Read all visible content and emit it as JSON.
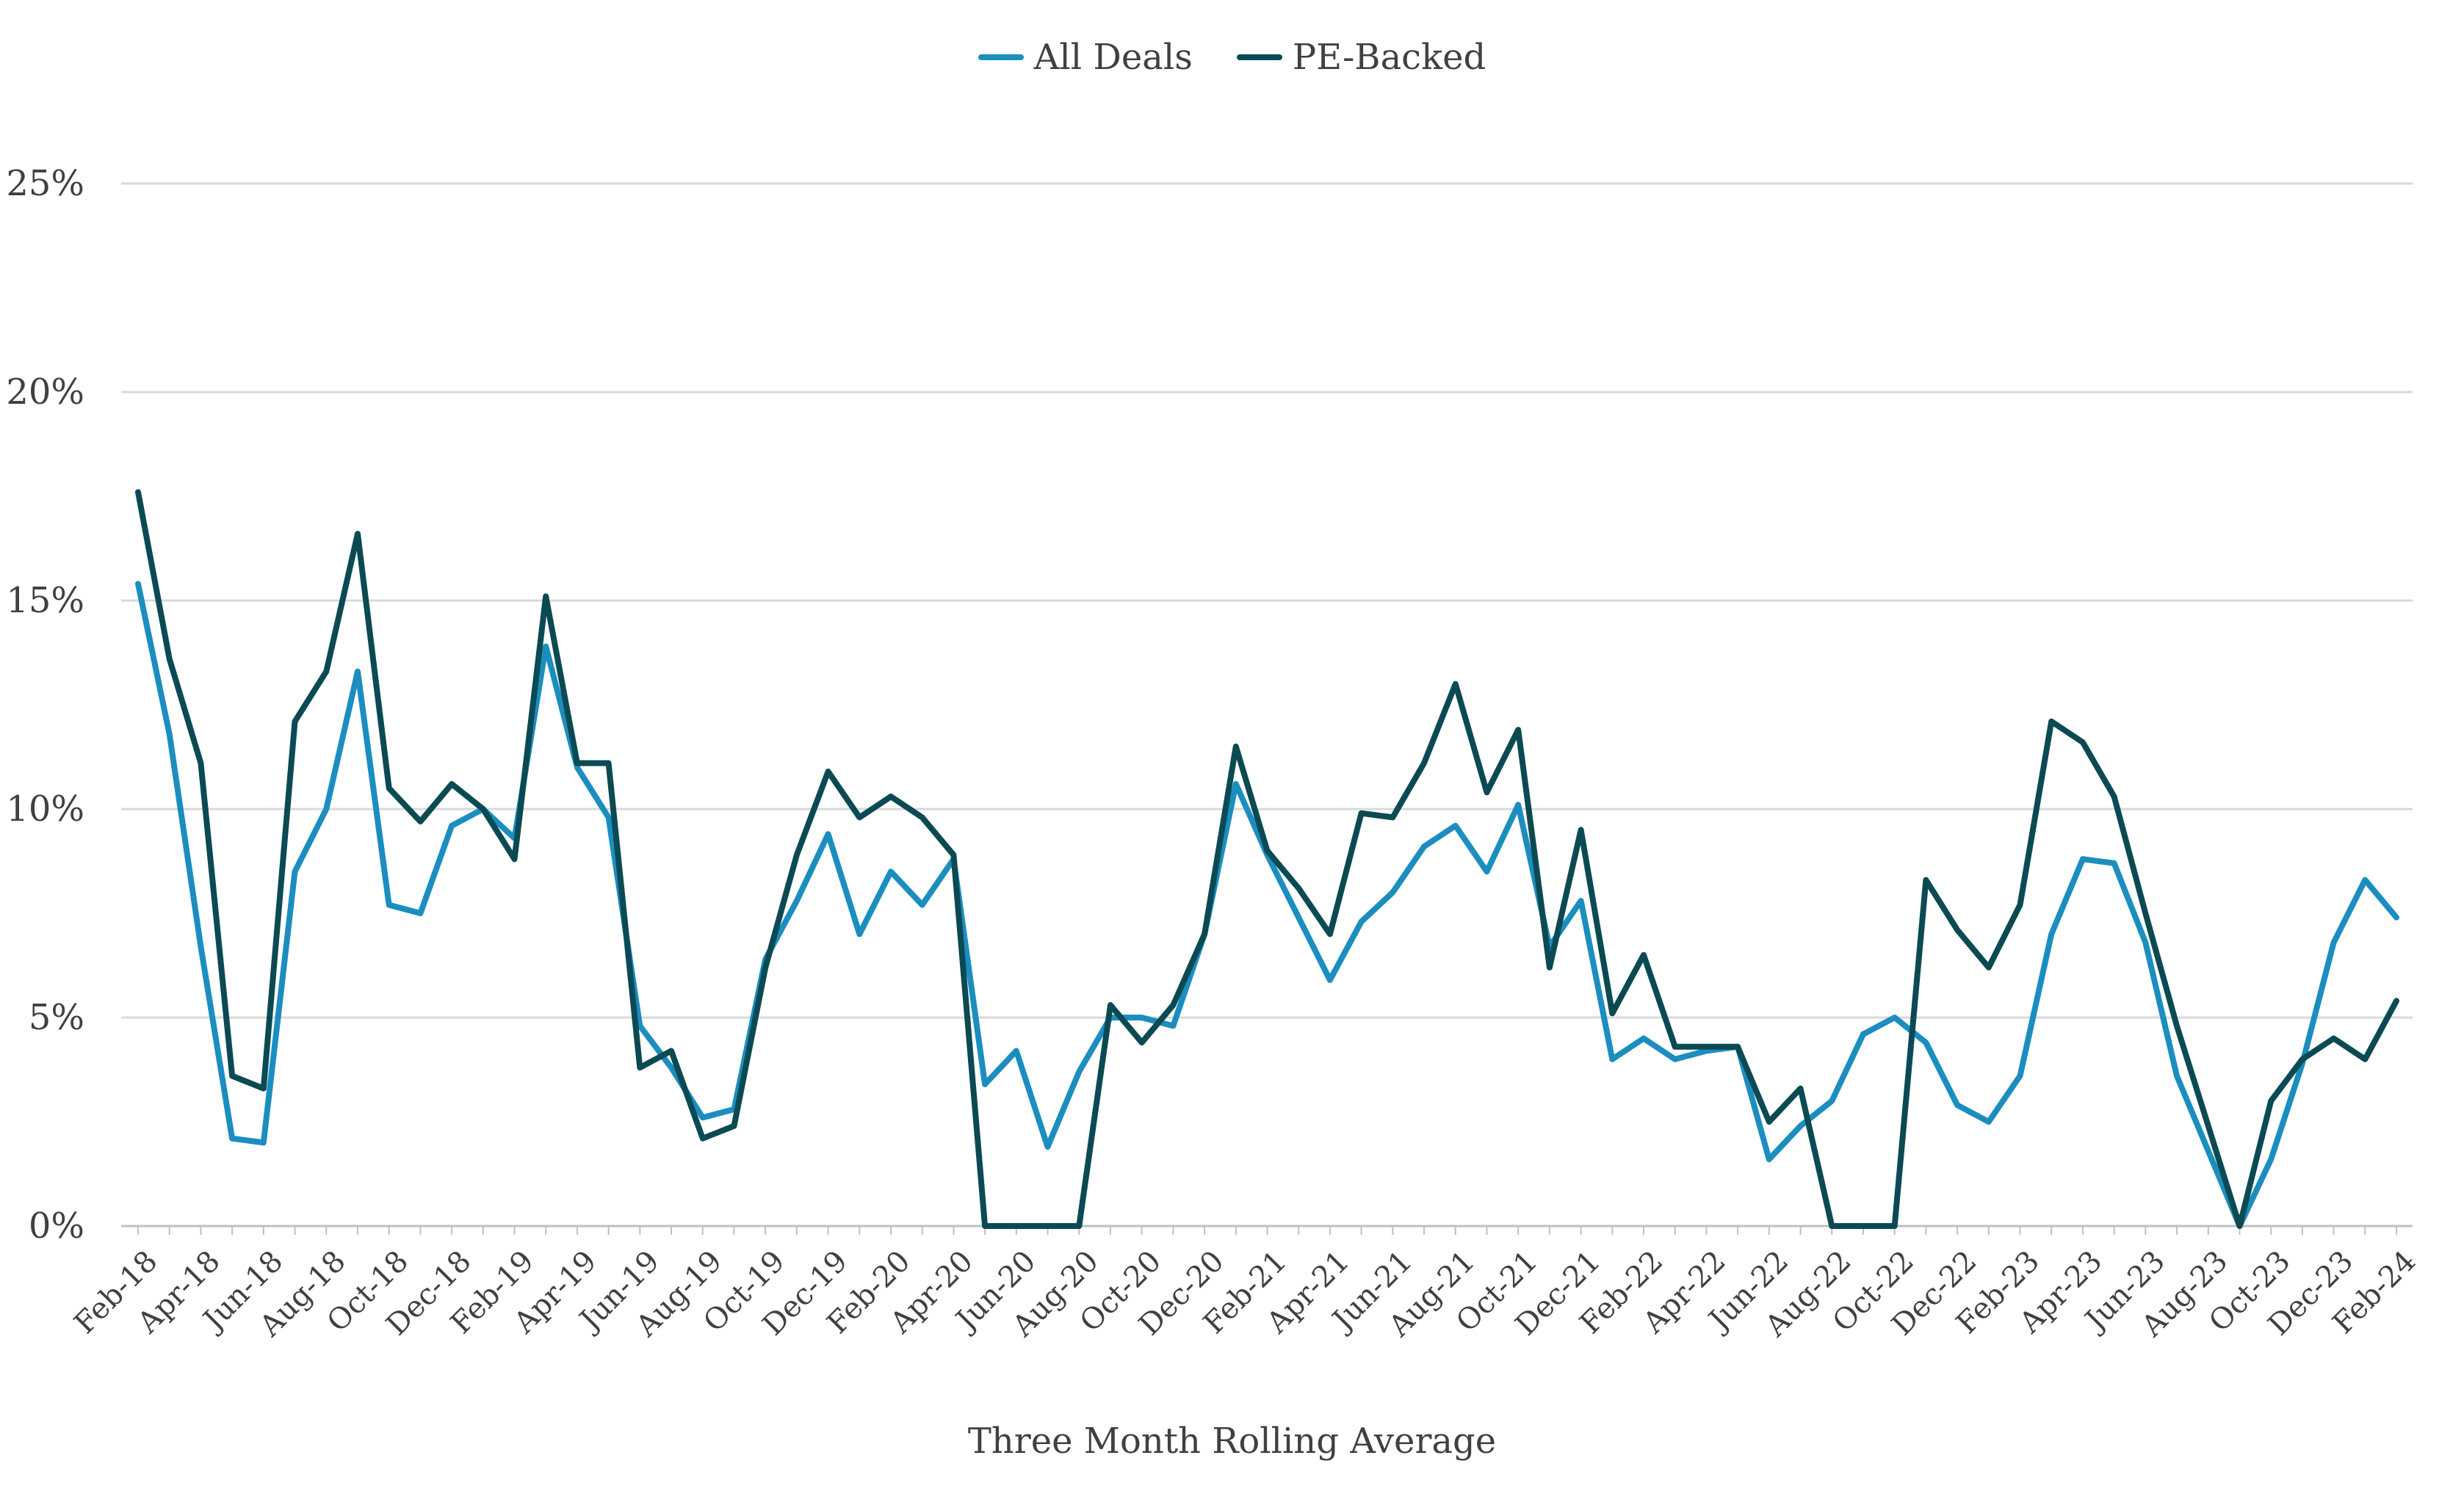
{
  "chart_data": {
    "type": "line",
    "title": "",
    "xlabel": "Three Month Rolling Average",
    "ylabel": "",
    "ylim": [
      0,
      0.25
    ],
    "y_ticks": [
      "0%",
      "5%",
      "10%",
      "15%",
      "20%",
      "25%"
    ],
    "grid": "horizontal",
    "legend_position": "top-center",
    "x_tick_labels": [
      "Feb-18",
      "Apr-18",
      "Jun-18",
      "Aug-18",
      "Oct-18",
      "Dec-18",
      "Feb-19",
      "Apr-19",
      "Jun-19",
      "Aug-19",
      "Oct-19",
      "Dec-19",
      "Feb-20",
      "Apr-20",
      "Jun-20",
      "Aug-20",
      "Oct-20",
      "Dec-20",
      "Feb-21",
      "Apr-21",
      "Jun-21",
      "Aug-21",
      "Oct-21",
      "Dec-21",
      "Feb-22",
      "Apr-22",
      "Jun-22",
      "Aug-22",
      "Oct-22",
      "Dec-22",
      "Feb-23",
      "Apr-23",
      "Jun-23",
      "Aug-23",
      "Oct-23",
      "Dec-23",
      "Feb-24"
    ],
    "x": [
      "Feb-18",
      "Mar-18",
      "Apr-18",
      "May-18",
      "Jun-18",
      "Jul-18",
      "Aug-18",
      "Sep-18",
      "Oct-18",
      "Nov-18",
      "Dec-18",
      "Jan-19",
      "Feb-19",
      "Mar-19",
      "Apr-19",
      "May-19",
      "Jun-19",
      "Jul-19",
      "Aug-19",
      "Sep-19",
      "Oct-19",
      "Nov-19",
      "Dec-19",
      "Jan-20",
      "Feb-20",
      "Mar-20",
      "Apr-20",
      "May-20",
      "Jun-20",
      "Jul-20",
      "Aug-20",
      "Sep-20",
      "Oct-20",
      "Nov-20",
      "Dec-20",
      "Jan-21",
      "Feb-21",
      "Mar-21",
      "Apr-21",
      "May-21",
      "Jun-21",
      "Jul-21",
      "Aug-21",
      "Sep-21",
      "Oct-21",
      "Nov-21",
      "Dec-21",
      "Jan-22",
      "Feb-22",
      "Mar-22",
      "Apr-22",
      "May-22",
      "Jun-22",
      "Jul-22",
      "Aug-22",
      "Sep-22",
      "Oct-22",
      "Nov-22",
      "Dec-22",
      "Jan-23",
      "Feb-23",
      "Mar-23",
      "Apr-23",
      "May-23",
      "Jun-23",
      "Jul-23",
      "Aug-23",
      "Sep-23",
      "Oct-23",
      "Nov-23",
      "Dec-23",
      "Jan-24",
      "Feb-24"
    ],
    "series": [
      {
        "name": "All Deals",
        "color": "#1b8ebf",
        "values": [
          0.154,
          0.118,
          0.067,
          0.021,
          0.02,
          0.085,
          0.1,
          0.133,
          0.077,
          0.075,
          0.096,
          0.1,
          0.093,
          0.139,
          0.11,
          0.098,
          0.048,
          0.038,
          0.026,
          0.028,
          0.064,
          0.078,
          0.094,
          0.07,
          0.085,
          0.077,
          0.088,
          0.034,
          0.042,
          0.019,
          0.037,
          0.05,
          0.05,
          0.048,
          0.07,
          0.106,
          0.089,
          0.074,
          0.059,
          0.073,
          0.08,
          0.091,
          0.096,
          0.085,
          0.101,
          0.067,
          0.078,
          0.04,
          0.045,
          0.04,
          0.042,
          0.043,
          0.016,
          0.024,
          0.03,
          0.046,
          0.05,
          0.044,
          0.029,
          0.025,
          0.036,
          0.07,
          0.088,
          0.087,
          0.068,
          0.036,
          0.018,
          0.0,
          0.016,
          0.039,
          0.068,
          0.083,
          0.074
        ]
      },
      {
        "name": "PE-Backed",
        "color": "#0b4a53",
        "values": [
          0.176,
          0.136,
          0.111,
          0.036,
          0.033,
          0.121,
          0.133,
          0.166,
          0.105,
          0.097,
          0.106,
          0.1,
          0.088,
          0.151,
          0.111,
          0.111,
          0.038,
          0.042,
          0.021,
          0.024,
          0.062,
          0.089,
          0.109,
          0.098,
          0.103,
          0.098,
          0.089,
          0.0,
          0.0,
          0.0,
          0.0,
          0.053,
          0.044,
          0.053,
          0.07,
          0.115,
          0.09,
          0.081,
          0.07,
          0.099,
          0.098,
          0.111,
          0.13,
          0.104,
          0.119,
          0.062,
          0.095,
          0.051,
          0.065,
          0.043,
          0.043,
          0.043,
          0.025,
          0.033,
          0.0,
          0.0,
          0.0,
          0.083,
          0.071,
          0.062,
          0.077,
          0.121,
          0.116,
          0.103,
          0.075,
          0.048,
          0.024,
          0.0,
          0.03,
          0.04,
          0.045,
          0.04,
          0.054
        ]
      }
    ]
  }
}
